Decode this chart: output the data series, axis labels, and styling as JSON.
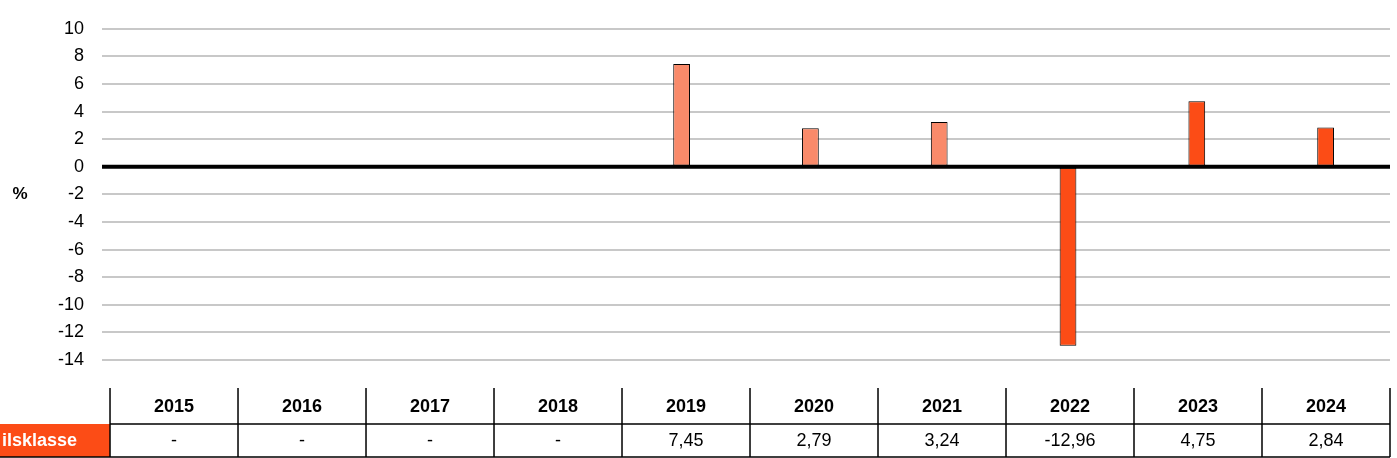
{
  "chart_data": {
    "type": "bar",
    "ylabel": "%",
    "categories": [
      "2015",
      "2016",
      "2017",
      "2018",
      "2019",
      "2020",
      "2021",
      "2022",
      "2023",
      "2024"
    ],
    "series": [
      {
        "name": "ilsklasse",
        "colors": [
          "#fc4c16",
          "#fc4c16",
          "#fc4c16",
          "#fc4c16",
          "#f98a6a",
          "#f98a6a",
          "#f98a6a",
          "#fc4c16",
          "#fc4c16",
          "#fc4c16"
        ],
        "values": [
          null,
          null,
          null,
          null,
          7.45,
          2.79,
          3.24,
          -12.96,
          4.75,
          2.84
        ],
        "value_labels": [
          "-",
          "-",
          "-",
          "-",
          "7,45",
          "2,79",
          "3,24",
          "-12,96",
          "4,75",
          "2,84"
        ]
      }
    ],
    "ylim": [
      -14,
      10
    ],
    "yticks": [
      -14,
      -12,
      -10,
      -8,
      -6,
      -4,
      -2,
      0,
      2,
      4,
      6,
      8,
      10
    ],
    "grid": "y",
    "legend": false,
    "tick_labels": "y"
  }
}
